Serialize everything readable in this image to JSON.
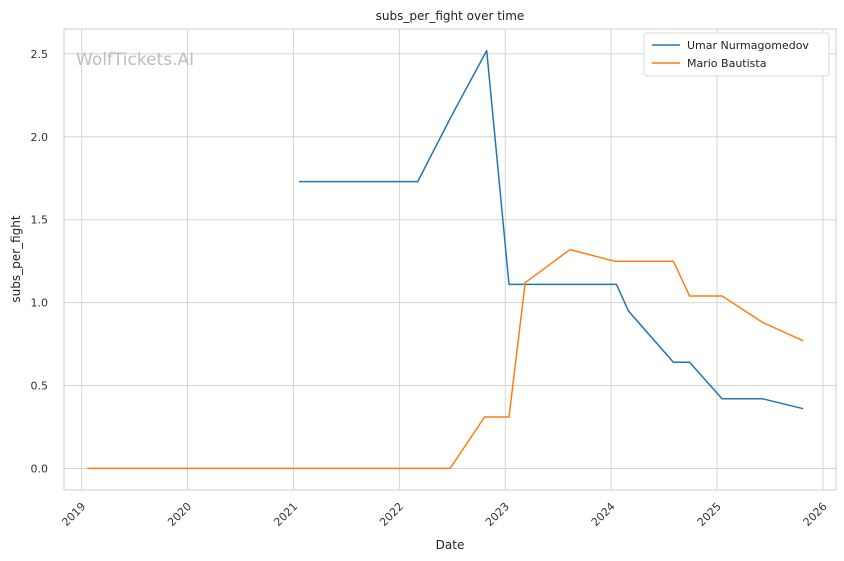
{
  "chart_data": {
    "type": "line",
    "title": "subs_per_fight over time",
    "xlabel": "Date",
    "ylabel": "subs_per_fight",
    "watermark": "WolfTickets.AI",
    "x_ticks": [
      "2019",
      "2020",
      "2021",
      "2022",
      "2023",
      "2024",
      "2025",
      "2026"
    ],
    "y_ticks": [
      "0.0",
      "0.5",
      "1.0",
      "1.5",
      "2.0",
      "2.5"
    ],
    "xlim": [
      "2018-11-01",
      "2026-02-15"
    ],
    "ylim": [
      -0.13,
      2.65
    ],
    "grid": true,
    "legend_position": "top-right",
    "series": [
      {
        "name": "Umar Nurmagomedov",
        "color": "#1f77b4",
        "points": [
          [
            "2021-01-20",
            1.73
          ],
          [
            "2022-03-05",
            1.73
          ],
          [
            "2022-07-01",
            2.13
          ],
          [
            "2022-10-29",
            2.52
          ],
          [
            "2023-01-14",
            1.11
          ],
          [
            "2024-01-20",
            1.11
          ],
          [
            "2024-03-01",
            0.95
          ],
          [
            "2024-08-03",
            0.64
          ],
          [
            "2024-09-28",
            0.64
          ],
          [
            "2025-01-18",
            0.42
          ],
          [
            "2025-06-07",
            0.42
          ],
          [
            "2025-10-25",
            0.36
          ]
        ]
      },
      {
        "name": "Mario Bautista",
        "color": "#ff7f0e",
        "points": [
          [
            "2019-01-20",
            0.0
          ],
          [
            "2022-06-25",
            0.0
          ],
          [
            "2022-10-22",
            0.31
          ],
          [
            "2023-01-14",
            0.31
          ],
          [
            "2023-03-11",
            1.12
          ],
          [
            "2023-08-12",
            1.32
          ],
          [
            "2024-01-13",
            1.25
          ],
          [
            "2024-08-03",
            1.25
          ],
          [
            "2024-09-28",
            1.04
          ],
          [
            "2025-01-18",
            1.04
          ],
          [
            "2025-06-07",
            0.88
          ],
          [
            "2025-10-25",
            0.77
          ]
        ]
      }
    ]
  }
}
